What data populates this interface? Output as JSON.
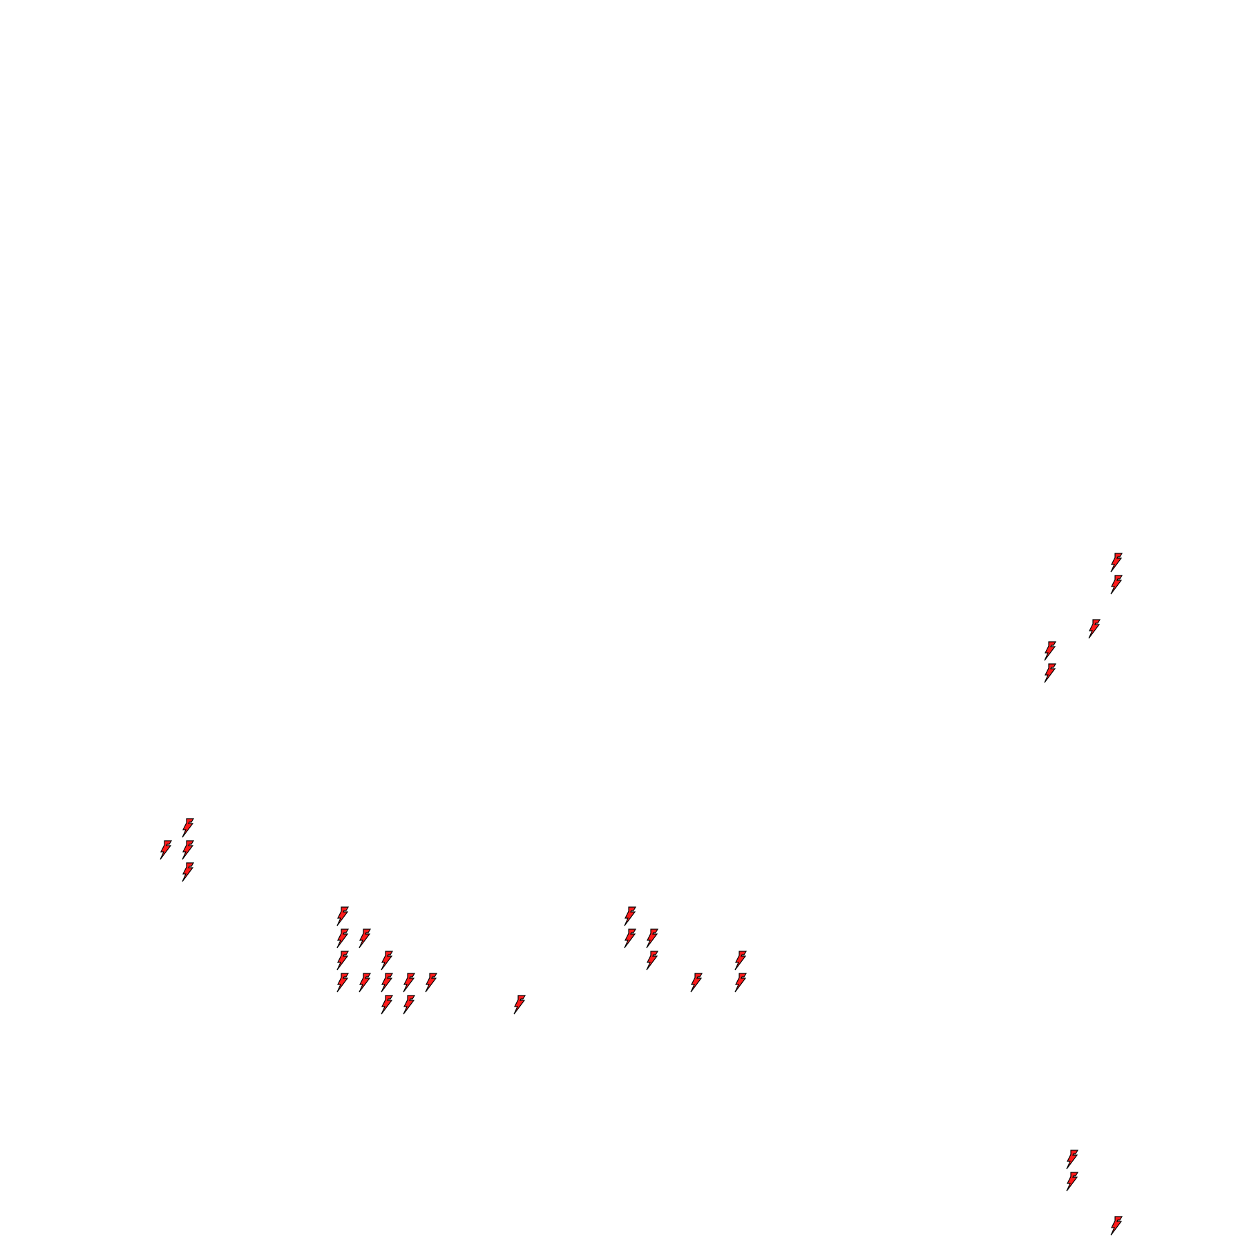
{
  "canvas": {
    "background": "#ffffff"
  },
  "markers": {
    "icon": "lightning-bolt-icon",
    "fill_color": "#ff1a1a",
    "stroke_color": "#000000"
  }
}
